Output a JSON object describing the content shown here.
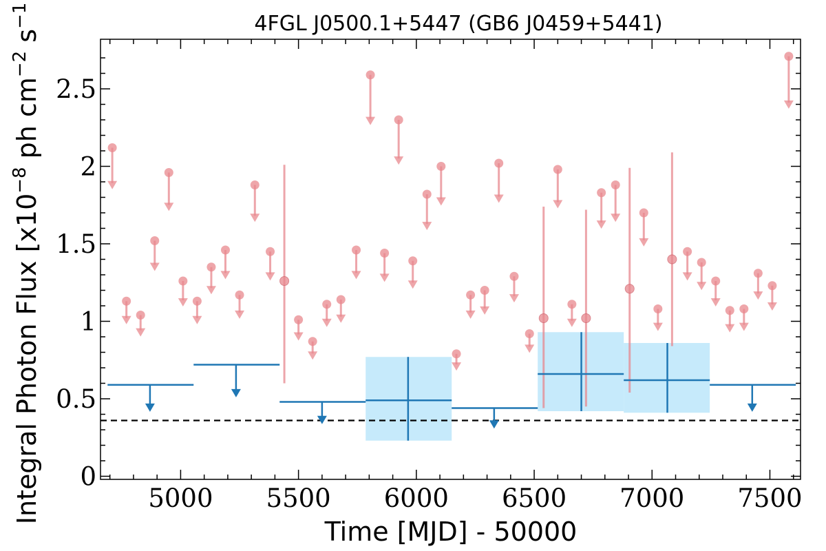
{
  "chart_data": {
    "type": "scatter",
    "title": "4FGL J0500.1+5447 (GB6 J0459+5441)",
    "xlabel": "Time [MJD] - 50000",
    "ylabel": "Integral Photon Flux [x10",
    "ylabel_exp1": "−8",
    "ylabel_mid": " ph cm",
    "ylabel_exp2": "−2",
    "ylabel_mid2": " s",
    "ylabel_exp3": "−1",
    "ylabel_end": "]",
    "xlim": [
      4660,
      7630
    ],
    "ylim": [
      -0.02,
      2.82
    ],
    "x_ticks": [
      {
        "value": 5000,
        "label": "5000"
      },
      {
        "value": 5500,
        "label": "5500"
      },
      {
        "value": 6000,
        "label": "6000"
      },
      {
        "value": 6500,
        "label": "6500"
      },
      {
        "value": 7000,
        "label": "7000"
      },
      {
        "value": 7500,
        "label": "7500"
      }
    ],
    "y_ticks": [
      {
        "value": 0,
        "label": "0"
      },
      {
        "value": 0.5,
        "label": "0.5"
      },
      {
        "value": 1,
        "label": "1"
      },
      {
        "value": 1.5,
        "label": "1.5"
      },
      {
        "value": 2,
        "label": "2"
      },
      {
        "value": 2.5,
        "label": "2.5"
      }
    ],
    "reference_line": {
      "y": 0.36
    },
    "colors": {
      "monthly": "#e8888e",
      "yearly": "#1f77b4",
      "band": "#c6eafb"
    },
    "series": [
      {
        "role": "monthly",
        "points": [
          {
            "x": 4710,
            "y": 2.12,
            "ul": true
          },
          {
            "x": 4770,
            "y": 1.13,
            "ul": true
          },
          {
            "x": 4830,
            "y": 1.04,
            "ul": true
          },
          {
            "x": 4890,
            "y": 1.52,
            "ul": true
          },
          {
            "x": 4950,
            "y": 1.96,
            "ul": true
          },
          {
            "x": 5010,
            "y": 1.26,
            "ul": true
          },
          {
            "x": 5070,
            "y": 1.13,
            "ul": true
          },
          {
            "x": 5130,
            "y": 1.35,
            "ul": true
          },
          {
            "x": 5190,
            "y": 1.46,
            "ul": true
          },
          {
            "x": 5250,
            "y": 1.17,
            "ul": true
          },
          {
            "x": 5315,
            "y": 1.88,
            "ul": true
          },
          {
            "x": 5380,
            "y": 1.45,
            "ul": true
          },
          {
            "x": 5440,
            "y": 1.26,
            "ul": false,
            "ylo": 0.6,
            "yhi": 2.01
          },
          {
            "x": 5500,
            "y": 1.01,
            "ul": true
          },
          {
            "x": 5560,
            "y": 0.87,
            "ul": true
          },
          {
            "x": 5620,
            "y": 1.11,
            "ul": true
          },
          {
            "x": 5680,
            "y": 1.14,
            "ul": true
          },
          {
            "x": 5745,
            "y": 1.46,
            "ul": true
          },
          {
            "x": 5805,
            "y": 2.59,
            "ul": true
          },
          {
            "x": 5865,
            "y": 1.44,
            "ul": true
          },
          {
            "x": 5925,
            "y": 2.3,
            "ul": true
          },
          {
            "x": 5985,
            "y": 1.39,
            "ul": true
          },
          {
            "x": 6045,
            "y": 1.82,
            "ul": true
          },
          {
            "x": 6105,
            "y": 2.0,
            "ul": true
          },
          {
            "x": 6170,
            "y": 0.79,
            "ul": true
          },
          {
            "x": 6230,
            "y": 1.17,
            "ul": true
          },
          {
            "x": 6290,
            "y": 1.2,
            "ul": true
          },
          {
            "x": 6350,
            "y": 2.02,
            "ul": true
          },
          {
            "x": 6415,
            "y": 1.29,
            "ul": true
          },
          {
            "x": 6480,
            "y": 0.92,
            "ul": true
          },
          {
            "x": 6540,
            "y": 1.02,
            "ul": false,
            "ylo": 0.44,
            "yhi": 1.74
          },
          {
            "x": 6600,
            "y": 1.98,
            "ul": true
          },
          {
            "x": 6660,
            "y": 1.11,
            "ul": true
          },
          {
            "x": 6720,
            "y": 1.02,
            "ul": false,
            "ylo": 0.45,
            "yhi": 1.72
          },
          {
            "x": 6785,
            "y": 1.83,
            "ul": true
          },
          {
            "x": 6845,
            "y": 1.88,
            "ul": true
          },
          {
            "x": 6905,
            "y": 1.21,
            "ul": false,
            "ylo": 0.54,
            "yhi": 1.99
          },
          {
            "x": 6965,
            "y": 1.7,
            "ul": true
          },
          {
            "x": 7025,
            "y": 1.08,
            "ul": true
          },
          {
            "x": 7085,
            "y": 1.4,
            "ul": false,
            "ylo": 0.84,
            "yhi": 2.09
          },
          {
            "x": 7150,
            "y": 1.45,
            "ul": true
          },
          {
            "x": 7210,
            "y": 1.38,
            "ul": true
          },
          {
            "x": 7270,
            "y": 1.26,
            "ul": true
          },
          {
            "x": 7330,
            "y": 1.07,
            "ul": true
          },
          {
            "x": 7390,
            "y": 1.08,
            "ul": true
          },
          {
            "x": 7450,
            "y": 1.31,
            "ul": true
          },
          {
            "x": 7510,
            "y": 1.23,
            "ul": true
          },
          {
            "x": 7580,
            "y": 2.71,
            "ul": true
          }
        ]
      },
      {
        "role": "yearly",
        "points": [
          {
            "x0": 4690,
            "x1": 5055,
            "xc": 4870,
            "y": 0.59,
            "ul": true
          },
          {
            "x0": 5055,
            "x1": 5420,
            "xc": 5235,
            "y": 0.72,
            "ul": true
          },
          {
            "x0": 5420,
            "x1": 5785,
            "xc": 5600,
            "y": 0.48,
            "ul": true
          },
          {
            "x0": 5785,
            "x1": 6150,
            "xc": 5965,
            "y": 0.49,
            "ul": false,
            "ylo": 0.23,
            "yhi": 0.77
          },
          {
            "x0": 6150,
            "x1": 6515,
            "xc": 6330,
            "y": 0.44,
            "ul": true
          },
          {
            "x0": 6515,
            "x1": 6880,
            "xc": 6700,
            "y": 0.66,
            "ul": false,
            "ylo": 0.42,
            "yhi": 0.93
          },
          {
            "x0": 6880,
            "x1": 7245,
            "xc": 7065,
            "y": 0.62,
            "ul": false,
            "ylo": 0.41,
            "yhi": 0.86
          },
          {
            "x0": 7245,
            "x1": 7610,
            "xc": 7425,
            "y": 0.59,
            "ul": true
          }
        ]
      }
    ]
  }
}
